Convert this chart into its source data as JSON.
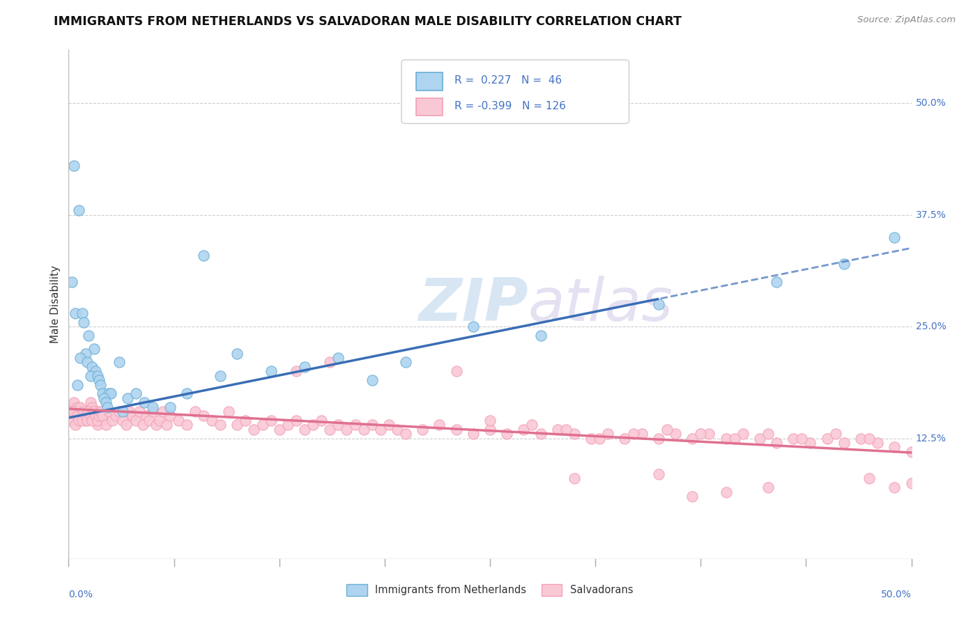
{
  "title": "IMMIGRANTS FROM NETHERLANDS VS SALVADORAN MALE DISABILITY CORRELATION CHART",
  "source": "Source: ZipAtlas.com",
  "ylabel": "Male Disability",
  "ytick_vals": [
    0.125,
    0.25,
    0.375,
    0.5
  ],
  "ytick_labels": [
    "12.5%",
    "25.0%",
    "37.5%",
    "50.0%"
  ],
  "xlim": [
    0.0,
    0.5
  ],
  "ylim": [
    -0.01,
    0.56
  ],
  "color_blue_edge": "#6aaed6",
  "color_blue_fill": "#aed4ef",
  "color_pink_edge": "#f4a0b5",
  "color_pink_fill": "#f9c8d5",
  "color_blue_line": "#3a6db5",
  "color_pink_line": "#e07090",
  "color_blue_text": "#4472c4",
  "background": "#ffffff",
  "grid_color": "#cccccc",
  "blue_scatter": [
    [
      0.003,
      0.43
    ],
    [
      0.006,
      0.38
    ],
    [
      0.002,
      0.3
    ],
    [
      0.004,
      0.265
    ],
    [
      0.008,
      0.265
    ],
    [
      0.009,
      0.255
    ],
    [
      0.012,
      0.24
    ],
    [
      0.015,
      0.225
    ],
    [
      0.01,
      0.22
    ],
    [
      0.007,
      0.215
    ],
    [
      0.011,
      0.21
    ],
    [
      0.014,
      0.205
    ],
    [
      0.016,
      0.2
    ],
    [
      0.013,
      0.195
    ],
    [
      0.017,
      0.195
    ],
    [
      0.018,
      0.19
    ],
    [
      0.08,
      0.33
    ],
    [
      0.03,
      0.21
    ],
    [
      0.005,
      0.185
    ],
    [
      0.019,
      0.185
    ],
    [
      0.02,
      0.175
    ],
    [
      0.024,
      0.175
    ],
    [
      0.025,
      0.175
    ],
    [
      0.021,
      0.17
    ],
    [
      0.035,
      0.17
    ],
    [
      0.04,
      0.175
    ],
    [
      0.022,
      0.165
    ],
    [
      0.045,
      0.165
    ],
    [
      0.023,
      0.16
    ],
    [
      0.05,
      0.16
    ],
    [
      0.06,
      0.16
    ],
    [
      0.032,
      0.155
    ],
    [
      0.07,
      0.175
    ],
    [
      0.09,
      0.195
    ],
    [
      0.1,
      0.22
    ],
    [
      0.12,
      0.2
    ],
    [
      0.14,
      0.205
    ],
    [
      0.16,
      0.215
    ],
    [
      0.18,
      0.19
    ],
    [
      0.2,
      0.21
    ],
    [
      0.24,
      0.25
    ],
    [
      0.28,
      0.24
    ],
    [
      0.35,
      0.275
    ],
    [
      0.42,
      0.3
    ],
    [
      0.46,
      0.32
    ],
    [
      0.49,
      0.35
    ]
  ],
  "pink_scatter": [
    [
      0.001,
      0.155
    ],
    [
      0.002,
      0.16
    ],
    [
      0.003,
      0.165
    ],
    [
      0.004,
      0.15
    ],
    [
      0.005,
      0.16
    ],
    [
      0.006,
      0.155
    ],
    [
      0.007,
      0.15
    ],
    [
      0.008,
      0.155
    ],
    [
      0.009,
      0.15
    ],
    [
      0.01,
      0.145
    ],
    [
      0.011,
      0.155
    ],
    [
      0.012,
      0.15
    ],
    [
      0.013,
      0.165
    ],
    [
      0.014,
      0.16
    ],
    [
      0.015,
      0.145
    ],
    [
      0.016,
      0.155
    ],
    [
      0.017,
      0.14
    ],
    [
      0.018,
      0.155
    ],
    [
      0.019,
      0.15
    ],
    [
      0.02,
      0.145
    ],
    [
      0.001,
      0.145
    ],
    [
      0.002,
      0.155
    ],
    [
      0.003,
      0.155
    ],
    [
      0.004,
      0.14
    ],
    [
      0.005,
      0.15
    ],
    [
      0.006,
      0.145
    ],
    [
      0.007,
      0.16
    ],
    [
      0.008,
      0.145
    ],
    [
      0.009,
      0.155
    ],
    [
      0.01,
      0.15
    ],
    [
      0.011,
      0.145
    ],
    [
      0.012,
      0.155
    ],
    [
      0.013,
      0.15
    ],
    [
      0.014,
      0.145
    ],
    [
      0.015,
      0.155
    ],
    [
      0.016,
      0.15
    ],
    [
      0.017,
      0.145
    ],
    [
      0.018,
      0.15
    ],
    [
      0.019,
      0.155
    ],
    [
      0.02,
      0.15
    ],
    [
      0.022,
      0.14
    ],
    [
      0.024,
      0.155
    ],
    [
      0.026,
      0.145
    ],
    [
      0.028,
      0.15
    ],
    [
      0.03,
      0.155
    ],
    [
      0.032,
      0.145
    ],
    [
      0.034,
      0.14
    ],
    [
      0.036,
      0.155
    ],
    [
      0.038,
      0.15
    ],
    [
      0.04,
      0.145
    ],
    [
      0.042,
      0.155
    ],
    [
      0.044,
      0.14
    ],
    [
      0.046,
      0.15
    ],
    [
      0.048,
      0.145
    ],
    [
      0.05,
      0.155
    ],
    [
      0.052,
      0.14
    ],
    [
      0.054,
      0.145
    ],
    [
      0.056,
      0.155
    ],
    [
      0.058,
      0.14
    ],
    [
      0.06,
      0.15
    ],
    [
      0.065,
      0.145
    ],
    [
      0.07,
      0.14
    ],
    [
      0.075,
      0.155
    ],
    [
      0.08,
      0.15
    ],
    [
      0.085,
      0.145
    ],
    [
      0.09,
      0.14
    ],
    [
      0.095,
      0.155
    ],
    [
      0.1,
      0.14
    ],
    [
      0.105,
      0.145
    ],
    [
      0.11,
      0.135
    ],
    [
      0.115,
      0.14
    ],
    [
      0.12,
      0.145
    ],
    [
      0.125,
      0.135
    ],
    [
      0.13,
      0.14
    ],
    [
      0.135,
      0.145
    ],
    [
      0.14,
      0.135
    ],
    [
      0.145,
      0.14
    ],
    [
      0.15,
      0.145
    ],
    [
      0.155,
      0.135
    ],
    [
      0.16,
      0.14
    ],
    [
      0.165,
      0.135
    ],
    [
      0.17,
      0.14
    ],
    [
      0.175,
      0.135
    ],
    [
      0.18,
      0.14
    ],
    [
      0.185,
      0.135
    ],
    [
      0.19,
      0.14
    ],
    [
      0.195,
      0.135
    ],
    [
      0.2,
      0.13
    ],
    [
      0.21,
      0.135
    ],
    [
      0.22,
      0.14
    ],
    [
      0.23,
      0.135
    ],
    [
      0.24,
      0.13
    ],
    [
      0.25,
      0.135
    ],
    [
      0.26,
      0.13
    ],
    [
      0.27,
      0.135
    ],
    [
      0.28,
      0.13
    ],
    [
      0.29,
      0.135
    ],
    [
      0.3,
      0.13
    ],
    [
      0.31,
      0.125
    ],
    [
      0.32,
      0.13
    ],
    [
      0.33,
      0.125
    ],
    [
      0.34,
      0.13
    ],
    [
      0.35,
      0.125
    ],
    [
      0.36,
      0.13
    ],
    [
      0.37,
      0.125
    ],
    [
      0.38,
      0.13
    ],
    [
      0.39,
      0.125
    ],
    [
      0.4,
      0.13
    ],
    [
      0.41,
      0.125
    ],
    [
      0.42,
      0.12
    ],
    [
      0.43,
      0.125
    ],
    [
      0.44,
      0.12
    ],
    [
      0.45,
      0.125
    ],
    [
      0.46,
      0.12
    ],
    [
      0.47,
      0.125
    ],
    [
      0.48,
      0.12
    ],
    [
      0.49,
      0.115
    ],
    [
      0.5,
      0.11
    ],
    [
      0.23,
      0.2
    ],
    [
      0.155,
      0.21
    ],
    [
      0.135,
      0.2
    ],
    [
      0.37,
      0.06
    ],
    [
      0.39,
      0.065
    ],
    [
      0.415,
      0.07
    ],
    [
      0.475,
      0.08
    ],
    [
      0.3,
      0.08
    ],
    [
      0.35,
      0.085
    ],
    [
      0.49,
      0.07
    ],
    [
      0.5,
      0.075
    ],
    [
      0.25,
      0.145
    ],
    [
      0.275,
      0.14
    ],
    [
      0.295,
      0.135
    ],
    [
      0.315,
      0.125
    ],
    [
      0.335,
      0.13
    ],
    [
      0.355,
      0.135
    ],
    [
      0.375,
      0.13
    ],
    [
      0.395,
      0.125
    ],
    [
      0.415,
      0.13
    ],
    [
      0.435,
      0.125
    ],
    [
      0.455,
      0.13
    ],
    [
      0.475,
      0.125
    ]
  ],
  "blue_line_solid_end": 0.35,
  "blue_line_R": 0.227,
  "blue_line_b0": 0.148,
  "blue_line_b1": 0.38,
  "pink_line_R": -0.399,
  "pink_line_b0": 0.158,
  "pink_line_b1": -0.098
}
